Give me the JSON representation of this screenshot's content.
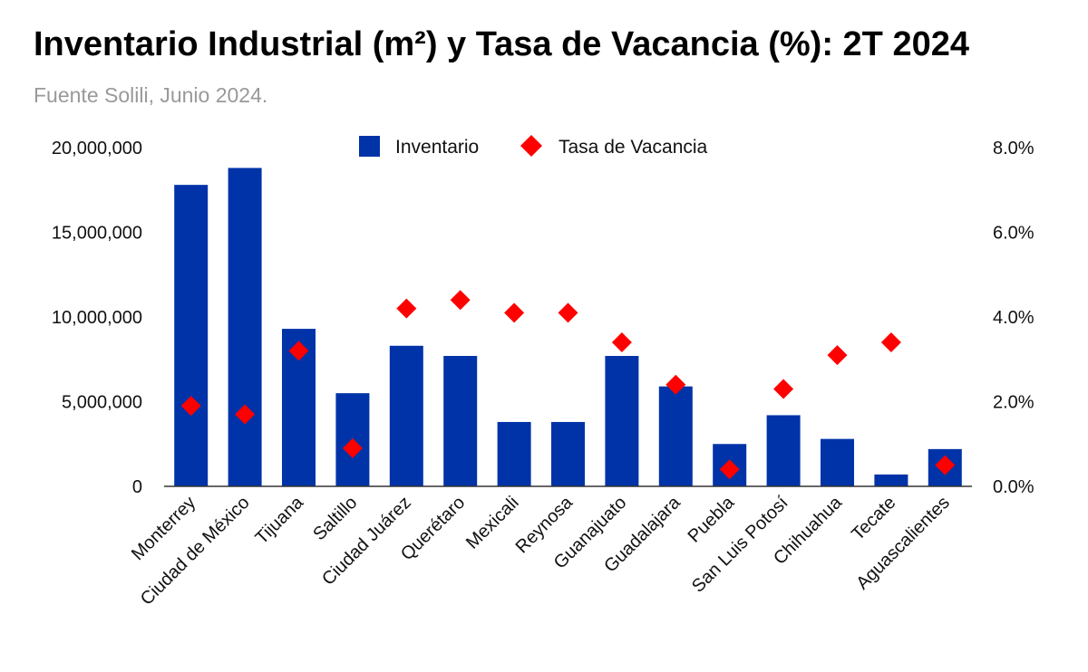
{
  "chart_data": {
    "type": "bar",
    "title": "Inventario Industrial (m²) y Tasa de Vacancia (%): 2T 2024",
    "subtitle": "Fuente Solili, Junio 2024.",
    "categories": [
      "Monterrey",
      "Ciudad de México",
      "Tijuana",
      "Saltillo",
      "Ciudad Juárez",
      "Querétaro",
      "Mexicali",
      "Reynosa",
      "Guanajuato",
      "Guadalajara",
      "Puebla",
      "San Luis Potosí",
      "Chihuahua",
      "Tecate",
      "Aguascalientes"
    ],
    "series": [
      {
        "name": "Inventario",
        "type": "bar",
        "axis": "left",
        "color": "#0033A8",
        "values": [
          17800000,
          18800000,
          9300000,
          5500000,
          8300000,
          7700000,
          3800000,
          3800000,
          7700000,
          5900000,
          2500000,
          4200000,
          2800000,
          700000,
          2200000
        ]
      },
      {
        "name": "Tasa de Vacancia",
        "type": "scatter",
        "marker": "diamond",
        "axis": "right",
        "color": "#FF0000",
        "values": [
          1.9,
          1.7,
          3.2,
          0.9,
          4.2,
          4.4,
          4.1,
          4.1,
          3.4,
          2.4,
          0.4,
          2.3,
          3.1,
          3.4,
          0.5
        ]
      }
    ],
    "y_left": {
      "ylim": [
        0,
        20000000
      ],
      "ticks": [
        "0",
        "5,000,000",
        "10,000,000",
        "15,000,000",
        "20,000,000"
      ]
    },
    "y_right": {
      "ylim": [
        0,
        8
      ],
      "ticks": [
        "0.0%",
        "2.0%",
        "4.0%",
        "6.0%",
        "8.0%"
      ]
    },
    "legend": "top-center",
    "grid": false
  }
}
